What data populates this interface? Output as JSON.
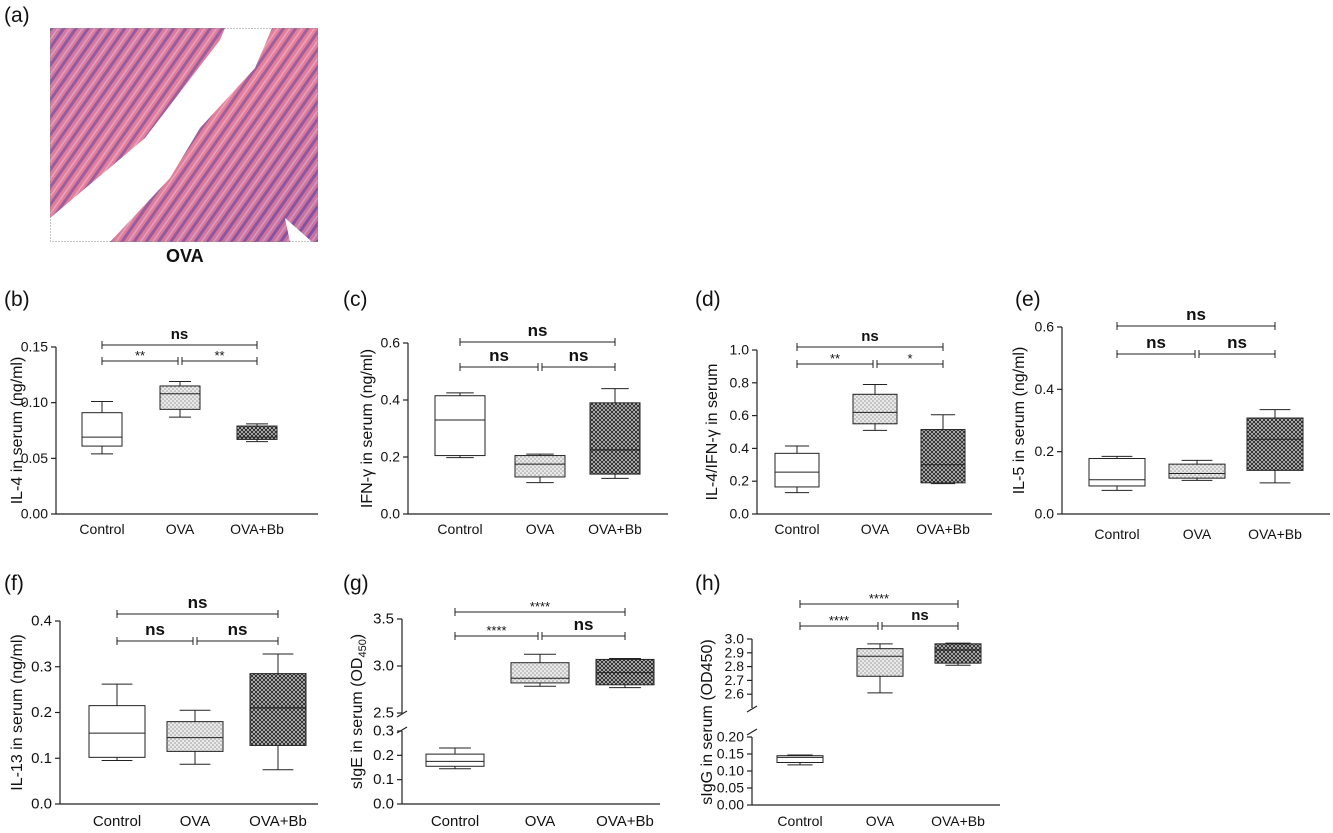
{
  "figure": {
    "image_caption": "OVA"
  },
  "chart_data": [
    {
      "panel": "(b)",
      "type": "box",
      "ylabel": "IL-4 in serum (ng/ml)",
      "categories": [
        "Control",
        "OVA",
        "OVA+Bb"
      ],
      "yticks": [
        "0.00",
        "0.05",
        "0.10",
        "0.15"
      ],
      "ylim": [
        0,
        0.15
      ],
      "boxes": [
        {
          "min": 0.054,
          "q1": 0.061,
          "median": 0.069,
          "q3": 0.091,
          "max": 0.101,
          "fill": "plain"
        },
        {
          "min": 0.087,
          "q1": 0.094,
          "median": 0.108,
          "q3": 0.115,
          "max": 0.119,
          "fill": "dots"
        },
        {
          "min": 0.065,
          "q1": 0.067,
          "median": 0.069,
          "q3": 0.079,
          "max": 0.081,
          "fill": "cross"
        }
      ],
      "brackets": [
        {
          "from": 0,
          "to": 2,
          "level": 1,
          "label": "ns"
        },
        {
          "from": 0,
          "to": 1,
          "level": 0,
          "label": "**"
        },
        {
          "from": 1,
          "to": 2,
          "level": 0,
          "label": "**"
        }
      ]
    },
    {
      "panel": "(c)",
      "type": "box",
      "ylabel": "IFN-γ in serum (ng/ml)",
      "categories": [
        "Control",
        "OVA",
        "OVA+Bb"
      ],
      "yticks": [
        "0.0",
        "0.2",
        "0.4",
        "0.6"
      ],
      "ylim": [
        0,
        0.6
      ],
      "boxes": [
        {
          "min": 0.198,
          "q1": 0.205,
          "median": 0.33,
          "q3": 0.415,
          "max": 0.425,
          "fill": "plain"
        },
        {
          "min": 0.11,
          "q1": 0.13,
          "median": 0.175,
          "q3": 0.205,
          "max": 0.21,
          "fill": "dots"
        },
        {
          "min": 0.125,
          "q1": 0.14,
          "median": 0.225,
          "q3": 0.39,
          "max": 0.44,
          "fill": "cross"
        }
      ],
      "brackets": [
        {
          "from": 0,
          "to": 2,
          "level": 1,
          "label": "ns"
        },
        {
          "from": 0,
          "to": 1,
          "level": 0,
          "label": "ns"
        },
        {
          "from": 1,
          "to": 2,
          "level": 0,
          "label": "ns"
        }
      ]
    },
    {
      "panel": "(d)",
      "type": "box",
      "ylabel": "IL-4/IFN-γ in serum",
      "categories": [
        "Control",
        "OVA",
        "OVA+Bb"
      ],
      "yticks": [
        "0.0",
        "0.2",
        "0.4",
        "0.6",
        "0.8",
        "1.0"
      ],
      "ylim": [
        0,
        1.0
      ],
      "boxes": [
        {
          "min": 0.13,
          "q1": 0.165,
          "median": 0.255,
          "q3": 0.37,
          "max": 0.415,
          "fill": "plain"
        },
        {
          "min": 0.51,
          "q1": 0.55,
          "median": 0.62,
          "q3": 0.73,
          "max": 0.79,
          "fill": "dots"
        },
        {
          "min": 0.185,
          "q1": 0.19,
          "median": 0.3,
          "q3": 0.515,
          "max": 0.605,
          "fill": "cross"
        }
      ],
      "brackets": [
        {
          "from": 0,
          "to": 2,
          "level": 1,
          "label": "ns"
        },
        {
          "from": 0,
          "to": 1,
          "level": 0,
          "label": "**"
        },
        {
          "from": 1,
          "to": 2,
          "level": 0,
          "label": "*"
        }
      ]
    },
    {
      "panel": "(e)",
      "type": "box",
      "ylabel": "IL-5 in serum (ng/ml)",
      "categories": [
        "Control",
        "OVA",
        "OVA+Bb"
      ],
      "yticks": [
        "0.0",
        "0.2",
        "0.4",
        "0.6"
      ],
      "ylim": [
        0,
        0.6
      ],
      "boxes": [
        {
          "min": 0.076,
          "q1": 0.09,
          "median": 0.11,
          "q3": 0.178,
          "max": 0.185,
          "fill": "plain"
        },
        {
          "min": 0.108,
          "q1": 0.115,
          "median": 0.13,
          "q3": 0.16,
          "max": 0.172,
          "fill": "dots"
        },
        {
          "min": 0.1,
          "q1": 0.14,
          "median": 0.24,
          "q3": 0.308,
          "max": 0.335,
          "fill": "cross"
        }
      ],
      "brackets": [
        {
          "from": 0,
          "to": 2,
          "level": 1,
          "label": "ns"
        },
        {
          "from": 0,
          "to": 1,
          "level": 0,
          "label": "ns"
        },
        {
          "from": 1,
          "to": 2,
          "level": 0,
          "label": "ns"
        }
      ]
    },
    {
      "panel": "(f)",
      "type": "box",
      "ylabel": "IL-13 in serum (ng/ml)",
      "categories": [
        "Control",
        "OVA",
        "OVA+Bb"
      ],
      "yticks": [
        "0.0",
        "0.1",
        "0.2",
        "0.3",
        "0.4"
      ],
      "ylim": [
        0,
        0.4
      ],
      "boxes": [
        {
          "min": 0.095,
          "q1": 0.102,
          "median": 0.155,
          "q3": 0.215,
          "max": 0.262,
          "fill": "plain"
        },
        {
          "min": 0.087,
          "q1": 0.115,
          "median": 0.145,
          "q3": 0.18,
          "max": 0.205,
          "fill": "dots"
        },
        {
          "min": 0.075,
          "q1": 0.128,
          "median": 0.21,
          "q3": 0.285,
          "max": 0.328,
          "fill": "cross"
        }
      ],
      "brackets": [
        {
          "from": 0,
          "to": 2,
          "level": 1,
          "label": "ns"
        },
        {
          "from": 0,
          "to": 1,
          "level": 0,
          "label": "ns"
        },
        {
          "from": 1,
          "to": 2,
          "level": 0,
          "label": "ns"
        }
      ]
    },
    {
      "panel": "(g)",
      "type": "box",
      "ylabel": "sIgE in serum (OD",
      "ylabel_subscript": "450",
      "ylabel_suffix": ")",
      "categories": [
        "Control",
        "OVA",
        "OVA+Bb"
      ],
      "ylim": [
        0,
        3.5
      ],
      "axis_break": {
        "lower": [
          0,
          0.3
        ],
        "upper": [
          2.5,
          3.5
        ]
      },
      "yticks_lower": [
        "0.0",
        "0.1",
        "0.2",
        "0.3"
      ],
      "yticks_upper": [
        "2.5",
        "3.0",
        "3.5"
      ],
      "boxes": [
        {
          "min": 0.145,
          "q1": 0.155,
          "median": 0.175,
          "q3": 0.205,
          "max": 0.23,
          "fill": "plain"
        },
        {
          "min": 2.785,
          "q1": 2.82,
          "median": 2.87,
          "q3": 3.035,
          "max": 3.125,
          "fill": "dots"
        },
        {
          "min": 2.77,
          "q1": 2.8,
          "median": 2.93,
          "q3": 3.07,
          "max": 3.08,
          "fill": "cross"
        }
      ],
      "brackets": [
        {
          "from": 0,
          "to": 2,
          "level": 1,
          "label": "****"
        },
        {
          "from": 0,
          "to": 1,
          "level": 0,
          "label": "****"
        },
        {
          "from": 1,
          "to": 2,
          "level": 0,
          "label": "ns"
        }
      ]
    },
    {
      "panel": "(h)",
      "type": "box",
      "ylabel": "sIgG in serum (OD450)",
      "categories": [
        "Control",
        "OVA",
        "OVA+Bb"
      ],
      "ylim": [
        0,
        3.0
      ],
      "axis_break": {
        "lower": [
          0,
          0.2
        ],
        "upper": [
          2.5,
          3.0
        ]
      },
      "yticks_lower": [
        "0.00",
        "0.05",
        "0.10",
        "0.15",
        "0.20"
      ],
      "yticks_upper": [
        "2.6",
        "2.7",
        "2.8",
        "2.9",
        "3.0"
      ],
      "boxes": [
        {
          "min": 0.118,
          "q1": 0.125,
          "median": 0.14,
          "q3": 0.145,
          "max": 0.147,
          "fill": "plain"
        },
        {
          "min": 2.61,
          "q1": 2.73,
          "median": 2.875,
          "q3": 2.93,
          "max": 2.965,
          "fill": "dots"
        },
        {
          "min": 2.81,
          "q1": 2.825,
          "median": 2.92,
          "q3": 2.965,
          "max": 2.97,
          "fill": "cross"
        }
      ],
      "brackets": [
        {
          "from": 0,
          "to": 2,
          "level": 1,
          "label": "****"
        },
        {
          "from": 0,
          "to": 1,
          "level": 0,
          "label": "****"
        },
        {
          "from": 1,
          "to": 2,
          "level": 0,
          "label": "ns"
        }
      ]
    }
  ]
}
